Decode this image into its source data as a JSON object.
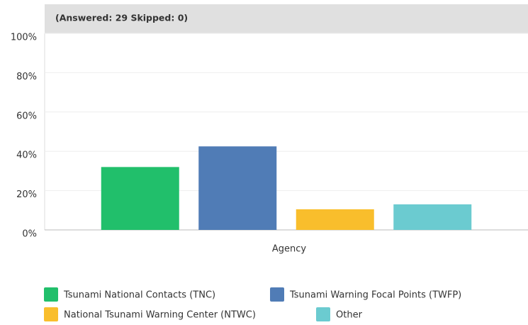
{
  "chart_data": {
    "type": "bar",
    "subtitle": "(Answered: 29 Skipped: 0)",
    "xlabel": "Agency",
    "categories": [
      "Agency"
    ],
    "series": [
      {
        "name": "Tsunami National Contacts (TNC)",
        "color": "#21bf6b",
        "values": [
          32
        ]
      },
      {
        "name": "Tsunami Warning Focal Points (TWFP)",
        "color": "#507cb6",
        "values": [
          42.5
        ]
      },
      {
        "name": "National Tsunami Warning Center (NTWC)",
        "color": "#f9be2c",
        "values": [
          10.5
        ]
      },
      {
        "name": "Other",
        "color": "#6bcbd0",
        "values": [
          13
        ]
      }
    ],
    "ylim": [
      0,
      100
    ],
    "yticks": [
      {
        "value": 0,
        "label": "0%"
      },
      {
        "value": 20,
        "label": "20%"
      },
      {
        "value": 40,
        "label": "40%"
      },
      {
        "value": 60,
        "label": "60%"
      },
      {
        "value": 80,
        "label": "80%"
      },
      {
        "value": 100,
        "label": "100%"
      }
    ],
    "grid": true
  }
}
